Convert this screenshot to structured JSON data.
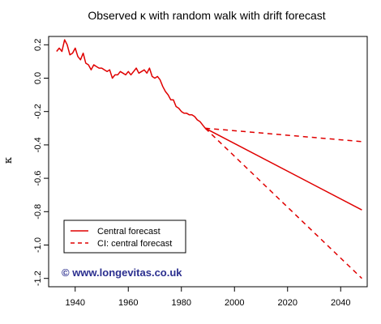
{
  "chart_data": {
    "type": "line",
    "title": "Observed κ with random walk with drift forecast",
    "xlabel": "",
    "ylabel": "κ",
    "xlim": [
      1930,
      2050
    ],
    "ylim": [
      -1.25,
      0.25
    ],
    "xticks": [
      1940,
      1960,
      1980,
      2000,
      2020,
      2040
    ],
    "yticks": [
      0.2,
      0.0,
      -0.2,
      -0.4,
      -0.6,
      -0.8,
      -1.0,
      -1.2
    ],
    "ytick_labels": [
      "0.2",
      "0.0",
      "-0.2",
      "-0.4",
      "-0.6",
      "-0.8",
      "-1.0",
      "-1.2"
    ],
    "grid": false,
    "legend_position": "bottom-left",
    "colors": {
      "series": "#e00000",
      "watermark": "#2b2f8f"
    },
    "series": [
      {
        "style": "solid",
        "x": [
          1933,
          1934,
          1935,
          1936,
          1937,
          1938,
          1939,
          1940,
          1941,
          1942,
          1943,
          1944,
          1945,
          1946,
          1947,
          1948,
          1949,
          1950,
          1951,
          1952,
          1953,
          1954,
          1955,
          1956,
          1957,
          1958,
          1959,
          1960,
          1961,
          1962,
          1963,
          1964,
          1965,
          1966,
          1967,
          1968,
          1969,
          1970,
          1971,
          1972,
          1973,
          1974,
          1975,
          1976,
          1977,
          1978,
          1979,
          1980,
          1981,
          1982,
          1983,
          1984,
          1985,
          1986,
          1987,
          1988,
          1989
        ],
        "y": [
          0.16,
          0.18,
          0.16,
          0.23,
          0.2,
          0.14,
          0.15,
          0.18,
          0.13,
          0.11,
          0.15,
          0.09,
          0.08,
          0.05,
          0.08,
          0.07,
          0.06,
          0.06,
          0.05,
          0.04,
          0.05,
          0.0,
          0.02,
          0.02,
          0.04,
          0.03,
          0.02,
          0.04,
          0.02,
          0.04,
          0.06,
          0.03,
          0.04,
          0.05,
          0.03,
          0.06,
          0.01,
          0.0,
          0.01,
          -0.01,
          -0.05,
          -0.08,
          -0.1,
          -0.13,
          -0.13,
          -0.17,
          -0.18,
          -0.2,
          -0.21,
          -0.21,
          -0.22,
          -0.22,
          -0.23,
          -0.25,
          -0.26,
          -0.28,
          -0.3
        ]
      },
      {
        "name": "Central forecast",
        "style": "solid",
        "x": [
          1989,
          2048
        ],
        "y": [
          -0.3,
          -0.79
        ]
      },
      {
        "name": "CI: central forecast",
        "style": "dashed",
        "x": [
          1989,
          2048
        ],
        "y": [
          -0.3,
          -0.38
        ]
      },
      {
        "style": "dashed",
        "x": [
          1989,
          2048
        ],
        "y": [
          -0.3,
          -1.2
        ]
      }
    ],
    "watermark": "© www.longevitas.co.uk"
  }
}
